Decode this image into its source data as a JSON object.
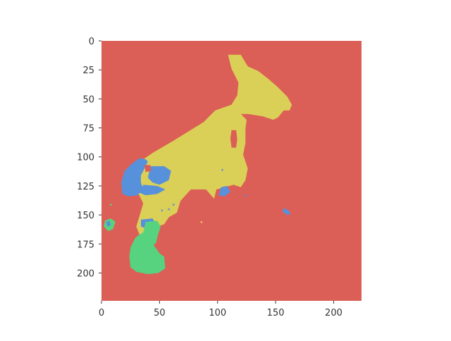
{
  "chart_data": {
    "type": "heatmap",
    "title": "",
    "xlabel": "",
    "ylabel": "",
    "xlim": [
      0,
      224
    ],
    "ylim": [
      224,
      0
    ],
    "grid": false,
    "x_ticks": [
      0,
      50,
      100,
      150,
      200
    ],
    "y_ticks": [
      0,
      25,
      50,
      75,
      100,
      125,
      150,
      175,
      200
    ],
    "x_tick_labels": [
      "0",
      "50",
      "100",
      "150",
      "200"
    ],
    "y_tick_labels": [
      "0",
      "25",
      "50",
      "75",
      "100",
      "125",
      "150",
      "175",
      "200"
    ],
    "classes": [
      {
        "id": 0,
        "color": "#db5f57"
      },
      {
        "id": 1,
        "color": "#dbd057"
      },
      {
        "id": 2,
        "color": "#57d37f"
      },
      {
        "id": 3,
        "color": "#5791db"
      }
    ],
    "background_class": 0,
    "regions": [
      {
        "class": 1,
        "points": [
          [
            109,
            12
          ],
          [
            120,
            12
          ],
          [
            126,
            22
          ],
          [
            135,
            26
          ],
          [
            144,
            33
          ],
          [
            152,
            40
          ],
          [
            160,
            48
          ],
          [
            164,
            55
          ],
          [
            162,
            60
          ],
          [
            157,
            60
          ],
          [
            152,
            66
          ],
          [
            148,
            68
          ],
          [
            139,
            65
          ],
          [
            126,
            63
          ],
          [
            120,
            63
          ],
          [
            125,
            68
          ],
          [
            124,
            76
          ],
          [
            124,
            88
          ],
          [
            122,
            98
          ],
          [
            126,
            110
          ],
          [
            124,
            120
          ],
          [
            120,
            126
          ],
          [
            114,
            124
          ],
          [
            106,
            126
          ],
          [
            99,
            128
          ],
          [
            97,
            136
          ],
          [
            90,
            128
          ],
          [
            77,
            128
          ],
          [
            68,
            138
          ],
          [
            65,
            148
          ],
          [
            58,
            152
          ],
          [
            54,
            158
          ],
          [
            48,
            160
          ],
          [
            44,
            170
          ],
          [
            34,
            170
          ],
          [
            30,
            160
          ],
          [
            33,
            150
          ],
          [
            36,
            140
          ],
          [
            32,
            132
          ],
          [
            24,
            128
          ],
          [
            30,
            106
          ],
          [
            45,
            96
          ],
          [
            62,
            86
          ],
          [
            75,
            78
          ],
          [
            88,
            70
          ],
          [
            98,
            60
          ],
          [
            112,
            55
          ],
          [
            117,
            47
          ],
          [
            118,
            36
          ],
          [
            112,
            24
          ],
          [
            109,
            12
          ]
        ]
      },
      {
        "class": 0,
        "points": [
          [
            112,
            77
          ],
          [
            116,
            77
          ],
          [
            117,
            85
          ],
          [
            116,
            92
          ],
          [
            112,
            92
          ],
          [
            111,
            84
          ],
          [
            112,
            77
          ]
        ]
      },
      {
        "class": 3,
        "points": [
          [
            33,
            101
          ],
          [
            38,
            102
          ],
          [
            40,
            104
          ],
          [
            37,
            110
          ],
          [
            34,
            116
          ],
          [
            34,
            122
          ],
          [
            36,
            128
          ],
          [
            31,
            133
          ],
          [
            24,
            134
          ],
          [
            18,
            132
          ],
          [
            17,
            122
          ],
          [
            20,
            112
          ],
          [
            26,
            106
          ],
          [
            33,
            101
          ]
        ]
      },
      {
        "class": 3,
        "points": [
          [
            42,
            108
          ],
          [
            54,
            108
          ],
          [
            60,
            112
          ],
          [
            58,
            120
          ],
          [
            50,
            124
          ],
          [
            44,
            122
          ],
          [
            40,
            118
          ],
          [
            42,
            108
          ]
        ]
      },
      {
        "class": 3,
        "points": [
          [
            36,
            124
          ],
          [
            48,
            125
          ],
          [
            55,
            128
          ],
          [
            48,
            132
          ],
          [
            38,
            133
          ],
          [
            33,
            131
          ],
          [
            36,
            124
          ]
        ]
      },
      {
        "class": 3,
        "points": [
          [
            103,
            126
          ],
          [
            108,
            125
          ],
          [
            111,
            130
          ],
          [
            106,
            134
          ],
          [
            101,
            133
          ],
          [
            103,
            126
          ]
        ]
      },
      {
        "class": 0,
        "points": [
          [
            37,
            107
          ],
          [
            42,
            107
          ],
          [
            43,
            112
          ],
          [
            38,
            113
          ],
          [
            37,
            107
          ]
        ]
      },
      {
        "class": 3,
        "points": [
          [
            157,
            144
          ],
          [
            161,
            146
          ],
          [
            163,
            149
          ],
          [
            160,
            150
          ],
          [
            156,
            147
          ],
          [
            157,
            144
          ]
        ]
      },
      {
        "class": 3,
        "points": [
          [
            34,
            154
          ],
          [
            44,
            153
          ],
          [
            47,
            158
          ],
          [
            40,
            162
          ],
          [
            34,
            160
          ],
          [
            34,
            154
          ]
        ]
      },
      {
        "class": 2,
        "points": [
          [
            38,
            156
          ],
          [
            48,
            155
          ],
          [
            51,
            160
          ],
          [
            49,
            166
          ],
          [
            47,
            174
          ],
          [
            45,
            176
          ],
          [
            50,
            183
          ],
          [
            54,
            186
          ],
          [
            55,
            196
          ],
          [
            49,
            200
          ],
          [
            40,
            201
          ],
          [
            30,
            199
          ],
          [
            25,
            195
          ],
          [
            24,
            186
          ],
          [
            25,
            178
          ],
          [
            29,
            170
          ],
          [
            31,
            168
          ],
          [
            36,
            165
          ],
          [
            38,
            156
          ]
        ]
      },
      {
        "class": 2,
        "points": [
          [
            3,
            155
          ],
          [
            8,
            153
          ],
          [
            12,
            156
          ],
          [
            10,
            162
          ],
          [
            6,
            164
          ],
          [
            2,
            160
          ],
          [
            3,
            155
          ]
        ]
      },
      {
        "class": 3,
        "points": [
          [
            4,
            156
          ],
          [
            7,
            155
          ],
          [
            8,
            159
          ],
          [
            5,
            160
          ],
          [
            4,
            156
          ]
        ]
      }
    ],
    "specks": [
      {
        "class": 3,
        "x": 104,
        "y": 111
      },
      {
        "class": 3,
        "x": 124,
        "y": 133
      },
      {
        "class": 3,
        "x": 58,
        "y": 145
      },
      {
        "class": 3,
        "x": 62,
        "y": 141
      },
      {
        "class": 3,
        "x": 52,
        "y": 146
      },
      {
        "class": 2,
        "x": 8,
        "y": 141
      },
      {
        "class": 1,
        "x": 86,
        "y": 156
      }
    ]
  }
}
